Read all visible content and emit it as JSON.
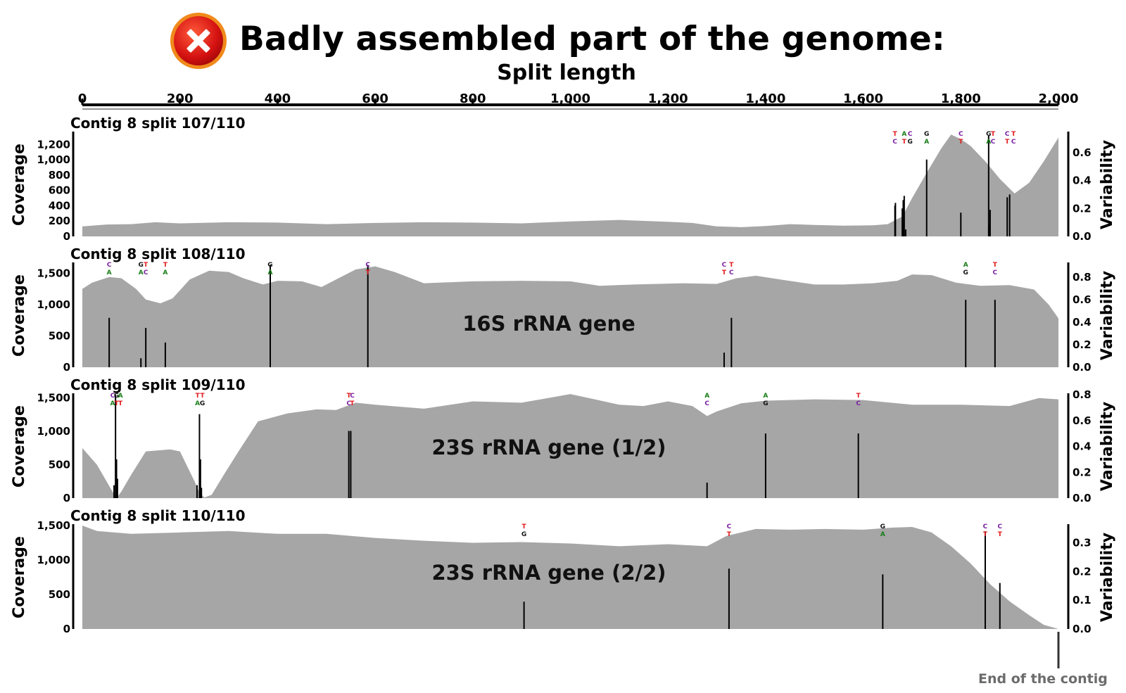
{
  "header": {
    "title": "Badly assembled part of the genome:",
    "icon": "red-x-circle-icon",
    "x_axis_label": "Split length",
    "footer_note": "End of the contig"
  },
  "colors": {
    "coverage_fill": "#a6a6a6",
    "bars": "#000000",
    "icon_red": "#e01b1b",
    "footer_text": "#6b6b6b",
    "nucleotide": {
      "A": "#1a7f1a",
      "T": "#e31a1c",
      "C": "#7a1fa2",
      "G": "#111111"
    }
  },
  "chart_data": [
    {
      "type": "area",
      "title": "Contig 8 split 107/110",
      "annotation": "",
      "x_axis": {
        "label": "Split length",
        "range": [
          0,
          2000
        ],
        "ticks": [
          "0",
          "200",
          "400",
          "600",
          "800",
          "1,000",
          "1,200",
          "1,400",
          "1,600",
          "1,800",
          "2,000"
        ]
      },
      "ylabel": "Coverage",
      "ylim": [
        0,
        1350
      ],
      "y_ticks": [
        0,
        200,
        400,
        600,
        800,
        1000,
        1200
      ],
      "y_tick_labels": [
        "0",
        "200",
        "400",
        "600",
        "800",
        "1,000",
        "1,200"
      ],
      "y2label": "Variability",
      "y2lim": [
        0,
        0.74
      ],
      "y2_ticks": [
        0.0,
        0.2,
        0.4,
        0.6
      ],
      "y2_tick_labels": [
        "0.0",
        "0.2",
        "0.4",
        "0.6"
      ],
      "coverage": [
        [
          0,
          130
        ],
        [
          50,
          155
        ],
        [
          100,
          160
        ],
        [
          150,
          185
        ],
        [
          200,
          170
        ],
        [
          300,
          185
        ],
        [
          400,
          180
        ],
        [
          500,
          160
        ],
        [
          600,
          175
        ],
        [
          700,
          185
        ],
        [
          800,
          180
        ],
        [
          900,
          170
        ],
        [
          1000,
          195
        ],
        [
          1100,
          215
        ],
        [
          1200,
          190
        ],
        [
          1250,
          175
        ],
        [
          1300,
          130
        ],
        [
          1350,
          120
        ],
        [
          1400,
          135
        ],
        [
          1450,
          160
        ],
        [
          1500,
          150
        ],
        [
          1560,
          140
        ],
        [
          1620,
          145
        ],
        [
          1650,
          160
        ],
        [
          1680,
          260
        ],
        [
          1700,
          500
        ],
        [
          1730,
          830
        ],
        [
          1760,
          1150
        ],
        [
          1780,
          1330
        ],
        [
          1800,
          1270
        ],
        [
          1820,
          1180
        ],
        [
          1850,
          980
        ],
        [
          1880,
          750
        ],
        [
          1910,
          560
        ],
        [
          1940,
          700
        ],
        [
          1970,
          980
        ],
        [
          2000,
          1290
        ]
      ],
      "variability": [
        [
          1665,
          0.22
        ],
        [
          1666,
          0.24
        ],
        [
          1680,
          0.2
        ],
        [
          1682,
          0.26
        ],
        [
          1683,
          0.23
        ],
        [
          1684,
          0.29
        ],
        [
          1687,
          0.05
        ],
        [
          1730,
          0.55
        ],
        [
          1800,
          0.17
        ],
        [
          1857,
          0.72
        ],
        [
          1858,
          0.08
        ],
        [
          1860,
          0.19
        ],
        [
          1895,
          0.28
        ],
        [
          1900,
          0.3
        ]
      ],
      "snv_labels": [
        {
          "x": 1665,
          "top": "T",
          "bottom": "C"
        },
        {
          "x": 1684,
          "top": "A",
          "bottom": "T"
        },
        {
          "x": 1696,
          "top": "C",
          "bottom": "G"
        },
        {
          "x": 1730,
          "top": "G",
          "bottom": "A"
        },
        {
          "x": 1800,
          "top": "C",
          "bottom": "T"
        },
        {
          "x": 1857,
          "top": "G",
          "bottom": "A"
        },
        {
          "x": 1866,
          "top": "T",
          "bottom": "C"
        },
        {
          "x": 1895,
          "top": "C",
          "bottom": "T"
        },
        {
          "x": 1908,
          "top": "T",
          "bottom": "C"
        }
      ]
    },
    {
      "type": "area",
      "title": "Contig 8 split 108/110",
      "annotation": "16S rRNA gene",
      "ylabel": "Coverage",
      "ylim": [
        0,
        1650
      ],
      "y_ticks": [
        0,
        500,
        1000,
        1500
      ],
      "y_tick_labels": [
        "0",
        "500",
        "1,000",
        "1,500"
      ],
      "y2label": "Variability",
      "y2_ticks": [
        0.0,
        0.2,
        0.4,
        0.6,
        0.8
      ],
      "y2_tick_labels": [
        "0.0",
        "0.2",
        "0.4",
        "0.6",
        "0.8"
      ],
      "y2lim": [
        0,
        0.92
      ],
      "coverage": [
        [
          0,
          1250
        ],
        [
          20,
          1350
        ],
        [
          55,
          1440
        ],
        [
          80,
          1420
        ],
        [
          110,
          1250
        ],
        [
          130,
          1080
        ],
        [
          160,
          1020
        ],
        [
          185,
          1100
        ],
        [
          220,
          1400
        ],
        [
          260,
          1540
        ],
        [
          300,
          1520
        ],
        [
          330,
          1420
        ],
        [
          370,
          1320
        ],
        [
          400,
          1380
        ],
        [
          450,
          1370
        ],
        [
          490,
          1280
        ],
        [
          520,
          1400
        ],
        [
          560,
          1560
        ],
        [
          600,
          1610
        ],
        [
          640,
          1520
        ],
        [
          700,
          1340
        ],
        [
          800,
          1370
        ],
        [
          900,
          1380
        ],
        [
          1000,
          1370
        ],
        [
          1060,
          1300
        ],
        [
          1130,
          1320
        ],
        [
          1230,
          1340
        ],
        [
          1300,
          1330
        ],
        [
          1340,
          1420
        ],
        [
          1380,
          1460
        ],
        [
          1430,
          1400
        ],
        [
          1500,
          1320
        ],
        [
          1560,
          1320
        ],
        [
          1620,
          1340
        ],
        [
          1670,
          1380
        ],
        [
          1700,
          1480
        ],
        [
          1740,
          1470
        ],
        [
          1790,
          1350
        ],
        [
          1840,
          1300
        ],
        [
          1900,
          1310
        ],
        [
          1950,
          1240
        ],
        [
          1980,
          1000
        ],
        [
          2000,
          780
        ]
      ],
      "variability": [
        [
          55,
          0.44
        ],
        [
          120,
          0.08
        ],
        [
          130,
          0.35
        ],
        [
          170,
          0.22
        ],
        [
          385,
          0.91
        ],
        [
          585,
          0.91
        ],
        [
          1315,
          0.13
        ],
        [
          1330,
          0.44
        ],
        [
          1810,
          0.6
        ],
        [
          1870,
          0.6
        ]
      ],
      "snv_labels": [
        {
          "x": 55,
          "top": "C",
          "bottom": "A"
        },
        {
          "x": 120,
          "top": "G",
          "bottom": "A"
        },
        {
          "x": 130,
          "top": "T",
          "bottom": "C"
        },
        {
          "x": 170,
          "top": "T",
          "bottom": "A"
        },
        {
          "x": 385,
          "top": "G",
          "bottom": "A"
        },
        {
          "x": 585,
          "top": "C",
          "bottom": "T"
        },
        {
          "x": 1315,
          "top": "C",
          "bottom": "T"
        },
        {
          "x": 1330,
          "top": "T",
          "bottom": "C"
        },
        {
          "x": 1810,
          "top": "A",
          "bottom": "G"
        },
        {
          "x": 1870,
          "top": "T",
          "bottom": "C"
        }
      ]
    },
    {
      "type": "area",
      "title": "Contig 8 split 109/110",
      "annotation": "23S rRNA gene (1/2)",
      "ylabel": "Coverage",
      "ylim": [
        0,
        1550
      ],
      "y_ticks": [
        0,
        500,
        1000,
        1500
      ],
      "y_tick_labels": [
        "0",
        "500",
        "1,000",
        "1,500"
      ],
      "y2label": "Variability",
      "y2_ticks": [
        0.0,
        0.2,
        0.4,
        0.6,
        0.8
      ],
      "y2_tick_labels": [
        "0.0",
        "0.2",
        "0.4",
        "0.6",
        "0.8"
      ],
      "y2lim": [
        0,
        0.8
      ],
      "coverage": [
        [
          0,
          750
        ],
        [
          30,
          500
        ],
        [
          60,
          120
        ],
        [
          70,
          0
        ],
        [
          80,
          100
        ],
        [
          100,
          350
        ],
        [
          130,
          700
        ],
        [
          180,
          730
        ],
        [
          200,
          700
        ],
        [
          230,
          250
        ],
        [
          240,
          80
        ],
        [
          250,
          10
        ],
        [
          265,
          50
        ],
        [
          290,
          350
        ],
        [
          320,
          700
        ],
        [
          360,
          1150
        ],
        [
          420,
          1270
        ],
        [
          480,
          1330
        ],
        [
          520,
          1320
        ],
        [
          560,
          1430
        ],
        [
          600,
          1400
        ],
        [
          700,
          1340
        ],
        [
          800,
          1450
        ],
        [
          900,
          1430
        ],
        [
          1000,
          1560
        ],
        [
          1050,
          1480
        ],
        [
          1100,
          1400
        ],
        [
          1150,
          1380
        ],
        [
          1200,
          1450
        ],
        [
          1250,
          1380
        ],
        [
          1280,
          1230
        ],
        [
          1300,
          1300
        ],
        [
          1350,
          1420
        ],
        [
          1400,
          1460
        ],
        [
          1500,
          1480
        ],
        [
          1600,
          1470
        ],
        [
          1700,
          1400
        ],
        [
          1800,
          1400
        ],
        [
          1900,
          1380
        ],
        [
          1960,
          1500
        ],
        [
          2000,
          1480
        ]
      ],
      "variability": [
        [
          65,
          0.1
        ],
        [
          68,
          0.8
        ],
        [
          70,
          0.3
        ],
        [
          72,
          0.15
        ],
        [
          235,
          0.1
        ],
        [
          240,
          0.65
        ],
        [
          242,
          0.3
        ],
        [
          244,
          0.08
        ],
        [
          546,
          0.52
        ],
        [
          550,
          0.52
        ],
        [
          1280,
          0.12
        ],
        [
          1400,
          0.5
        ],
        [
          1590,
          0.5
        ]
      ],
      "snv_labels": [
        {
          "x": 62,
          "top": "C",
          "bottom": "A"
        },
        {
          "x": 70,
          "top": "G",
          "bottom": "T"
        },
        {
          "x": 78,
          "top": "A",
          "bottom": "T"
        },
        {
          "x": 236,
          "top": "T",
          "bottom": "A"
        },
        {
          "x": 246,
          "top": "T",
          "bottom": "G"
        },
        {
          "x": 546,
          "top": "T",
          "bottom": "C"
        },
        {
          "x": 553,
          "top": "C",
          "bottom": "T"
        },
        {
          "x": 1280,
          "top": "A",
          "bottom": "C"
        },
        {
          "x": 1400,
          "top": "A",
          "bottom": "G"
        },
        {
          "x": 1590,
          "top": "T",
          "bottom": "C"
        }
      ]
    },
    {
      "type": "area",
      "title": "Contig 8 split 110/110",
      "annotation": "23S rRNA gene (2/2)",
      "ylabel": "Coverage",
      "ylim": [
        0,
        1500
      ],
      "y_ticks": [
        0,
        500,
        1000,
        1500
      ],
      "y_tick_labels": [
        "0",
        "500",
        "1,000",
        "1,500"
      ],
      "y2label": "Variability",
      "y2_ticks": [
        0.0,
        0.1,
        0.2,
        0.3
      ],
      "y2_tick_labels": [
        "0.0",
        "0.1",
        "0.2",
        "0.3"
      ],
      "y2lim": [
        0,
        0.36
      ],
      "coverage": [
        [
          0,
          1500
        ],
        [
          30,
          1420
        ],
        [
          100,
          1380
        ],
        [
          200,
          1400
        ],
        [
          300,
          1420
        ],
        [
          400,
          1380
        ],
        [
          500,
          1380
        ],
        [
          600,
          1320
        ],
        [
          700,
          1280
        ],
        [
          800,
          1250
        ],
        [
          900,
          1260
        ],
        [
          1000,
          1240
        ],
        [
          1100,
          1200
        ],
        [
          1200,
          1230
        ],
        [
          1280,
          1200
        ],
        [
          1320,
          1350
        ],
        [
          1380,
          1450
        ],
        [
          1450,
          1440
        ],
        [
          1520,
          1450
        ],
        [
          1600,
          1440
        ],
        [
          1660,
          1470
        ],
        [
          1700,
          1480
        ],
        [
          1740,
          1400
        ],
        [
          1780,
          1200
        ],
        [
          1820,
          950
        ],
        [
          1860,
          650
        ],
        [
          1900,
          400
        ],
        [
          1940,
          200
        ],
        [
          1970,
          60
        ],
        [
          2000,
          0
        ]
      ],
      "variability": [
        [
          905,
          0.095
        ],
        [
          1325,
          0.21
        ],
        [
          1640,
          0.19
        ],
        [
          1850,
          0.34
        ],
        [
          1880,
          0.16
        ]
      ],
      "snv_labels": [
        {
          "x": 905,
          "top": "T",
          "bottom": "G"
        },
        {
          "x": 1325,
          "top": "C",
          "bottom": "T"
        },
        {
          "x": 1640,
          "top": "G",
          "bottom": "A"
        },
        {
          "x": 1850,
          "top": "C",
          "bottom": "T"
        },
        {
          "x": 1880,
          "top": "C",
          "bottom": "T"
        }
      ]
    }
  ]
}
